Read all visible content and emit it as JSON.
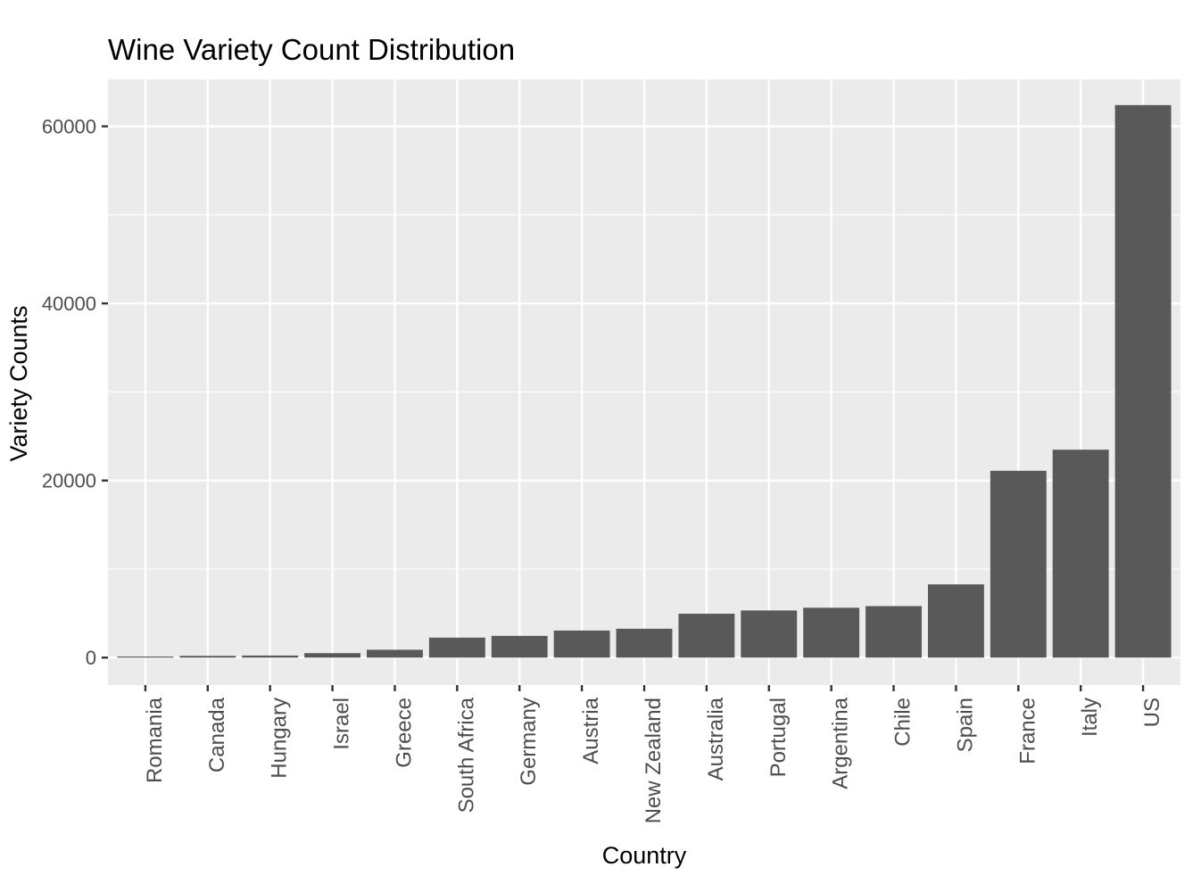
{
  "chart_data": {
    "type": "bar",
    "title": "Wine Variety Count Distribution",
    "xlabel": "Country",
    "ylabel": "Variety Counts",
    "categories": [
      "Romania",
      "Canada",
      "Hungary",
      "Israel",
      "Greece",
      "South Africa",
      "Germany",
      "Austria",
      "New Zealand",
      "Australia",
      "Portugal",
      "Argentina",
      "Chile",
      "Spain",
      "France",
      "Italy",
      "US"
    ],
    "values": [
      120,
      196,
      231,
      500,
      884,
      2258,
      2452,
      3057,
      3259,
      4957,
      5322,
      5631,
      5816,
      8268,
      21098,
      23478,
      62397
    ],
    "ylim": [
      -3100,
      65300
    ],
    "yticks": [
      0,
      20000,
      40000,
      60000
    ],
    "grid": true,
    "colors": {
      "panel": "#ebebeb",
      "bar": "#595959",
      "grid": "#ffffff",
      "tick_label": "#4d4d4d",
      "tick": "#333333"
    }
  }
}
